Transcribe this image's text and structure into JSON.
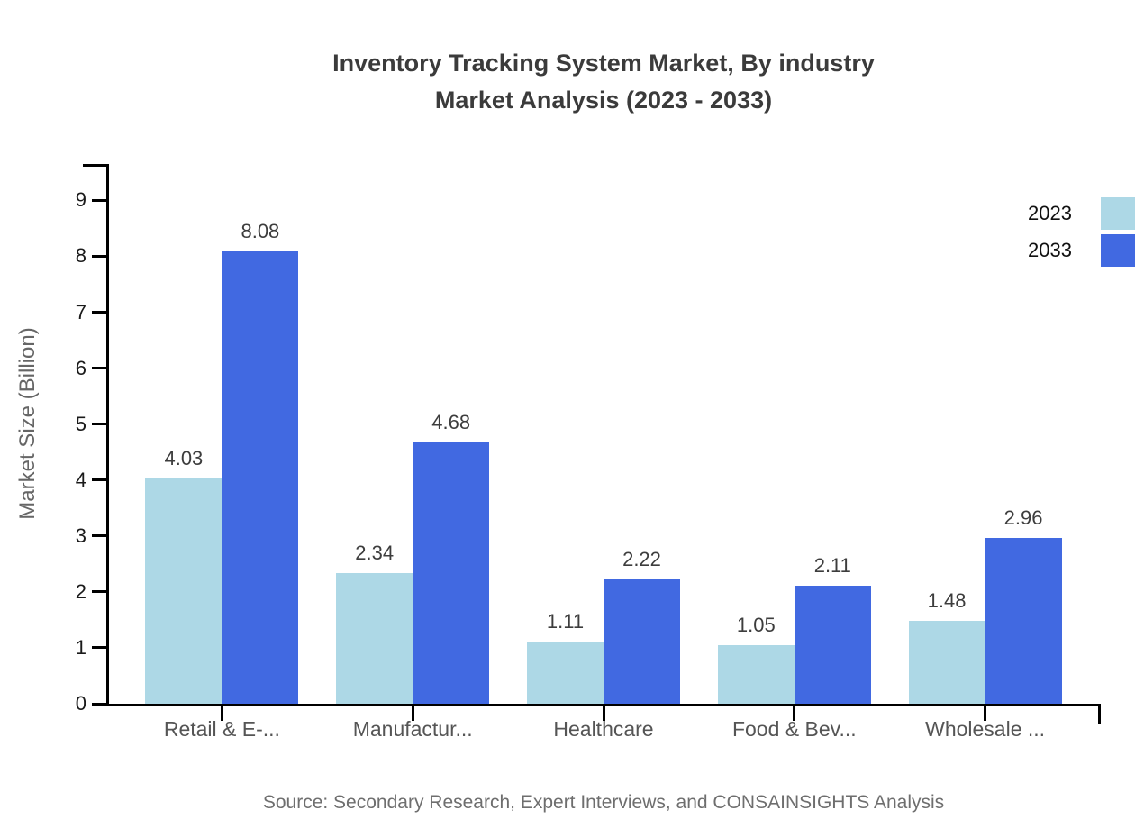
{
  "title": {
    "line1": "Inventory Tracking System Market, By industry",
    "line2": "Market Analysis (2023 - 2033)"
  },
  "y_axis": {
    "label": "Market Size (Billion)",
    "ticks": [
      0,
      1,
      2,
      3,
      4,
      5,
      6,
      7,
      8,
      9
    ]
  },
  "legend": [
    {
      "label": "2023",
      "color": "#ADD8E6"
    },
    {
      "label": "2033",
      "color": "#4169E1"
    }
  ],
  "source": "Source: Secondary Research, Expert Interviews, and CONSAINSIGHTS Analysis",
  "chart_data": {
    "type": "bar",
    "categories": [
      "Retail & E-...",
      "Manufactur...",
      "Healthcare",
      "Food & Bev...",
      "Wholesale ..."
    ],
    "series": [
      {
        "name": "2023",
        "color": "#ADD8E6",
        "values": [
          4.03,
          2.34,
          1.11,
          1.05,
          1.48
        ]
      },
      {
        "name": "2033",
        "color": "#4169E1",
        "values": [
          8.08,
          4.68,
          2.22,
          2.11,
          2.96
        ]
      }
    ],
    "title": "Inventory Tracking System Market, By industry Market Analysis (2023 - 2033)",
    "xlabel": "",
    "ylabel": "Market Size (Billion)",
    "ylim": [
      0,
      9.65
    ],
    "y_tick_step": 1,
    "grid": false,
    "legend_position": "top-right",
    "data_labels": true,
    "data_label_decimals": 2
  }
}
